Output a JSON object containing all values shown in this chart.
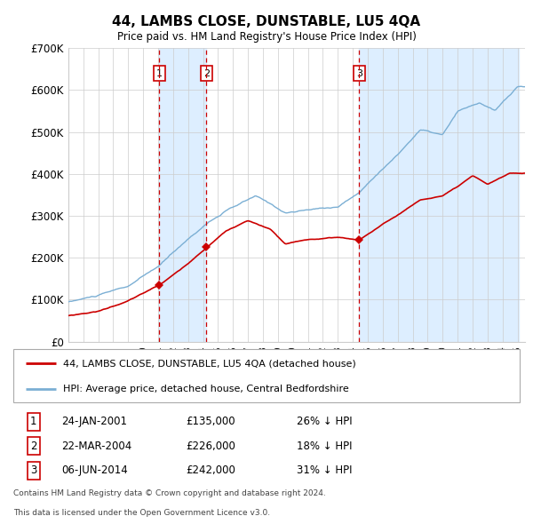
{
  "title": "44, LAMBS CLOSE, DUNSTABLE, LU5 4QA",
  "subtitle": "Price paid vs. HM Land Registry's House Price Index (HPI)",
  "ylim": [
    0,
    700000
  ],
  "yticks": [
    0,
    100000,
    200000,
    300000,
    400000,
    500000,
    600000,
    700000
  ],
  "ytick_labels": [
    "£0",
    "£100K",
    "£200K",
    "£300K",
    "£400K",
    "£500K",
    "£600K",
    "£700K"
  ],
  "hpi_color": "#7bafd4",
  "price_color": "#cc0000",
  "vline_color": "#cc0000",
  "bg_highlight_color": "#ddeeff",
  "grid_color": "#cccccc",
  "transactions": [
    {
      "label": "1",
      "date_year": 2001.07,
      "price": 135000,
      "date_str": "24-JAN-2001",
      "pct_str": "26% ↓ HPI"
    },
    {
      "label": "2",
      "date_year": 2004.23,
      "price": 226000,
      "date_str": "22-MAR-2004",
      "pct_str": "18% ↓ HPI"
    },
    {
      "label": "3",
      "date_year": 2014.43,
      "price": 242000,
      "date_str": "06-JUN-2014",
      "pct_str": "31% ↓ HPI"
    }
  ],
  "legend_entries": [
    "44, LAMBS CLOSE, DUNSTABLE, LU5 4QA (detached house)",
    "HPI: Average price, detached house, Central Bedfordshire"
  ],
  "footer_line1": "Contains HM Land Registry data © Crown copyright and database right 2024.",
  "footer_line2": "This data is licensed under the Open Government Licence v3.0.",
  "table_rows": [
    [
      "1",
      "24-JAN-2001",
      "£135,000",
      "26% ↓ HPI"
    ],
    [
      "2",
      "22-MAR-2004",
      "£226,000",
      "18% ↓ HPI"
    ],
    [
      "3",
      "06-JUN-2014",
      "£242,000",
      "31% ↓ HPI"
    ]
  ],
  "hpi_anchors_t": [
    1995.0,
    1997.0,
    1999.0,
    2001.1,
    2002.5,
    2004.2,
    2005.5,
    2007.5,
    2008.5,
    2009.5,
    2011.0,
    2013.0,
    2014.5,
    2015.5,
    2017.0,
    2018.5,
    2020.0,
    2021.0,
    2022.5,
    2023.5,
    2025.0
  ],
  "hpi_anchors_v": [
    95000,
    110000,
    130000,
    178000,
    225000,
    278000,
    308000,
    342000,
    322000,
    302000,
    308000,
    316000,
    352000,
    392000,
    442000,
    502000,
    488000,
    542000,
    562000,
    542000,
    598000
  ],
  "price_anchors_t": [
    1995.0,
    1997.0,
    1999.0,
    2001.07,
    2002.5,
    2004.23,
    2005.5,
    2007.0,
    2008.5,
    2009.5,
    2011.0,
    2013.0,
    2014.43,
    2015.5,
    2017.0,
    2018.5,
    2020.0,
    2021.0,
    2022.0,
    2023.0,
    2024.5
  ],
  "price_anchors_v": [
    62000,
    73000,
    98000,
    135000,
    172000,
    226000,
    265000,
    290000,
    268000,
    232000,
    242000,
    248000,
    242000,
    268000,
    302000,
    338000,
    348000,
    368000,
    392000,
    372000,
    398000
  ]
}
